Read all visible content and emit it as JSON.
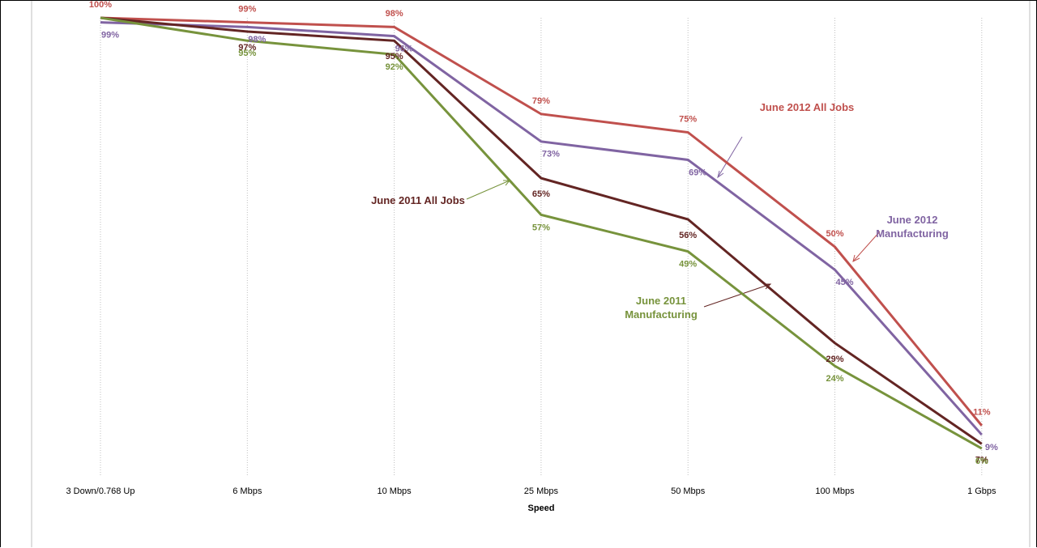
{
  "chart_data": {
    "type": "line",
    "x_label": "Speed",
    "categories": [
      "3 Down/0.768 Up",
      "6 Mbps",
      "10 Mbps",
      "25 Mbps",
      "50 Mbps",
      "100 Mbps",
      "1 Gbps"
    ],
    "ylim": [
      0,
      100
    ],
    "grid": true,
    "series": [
      {
        "name": "June 2012 All Jobs",
        "color": "#c0504d",
        "values": [
          100,
          99,
          98,
          79,
          75,
          50,
          11
        ],
        "value_labels": [
          "100%",
          "99%",
          "98%",
          "79%",
          "75%",
          "50%",
          "11%"
        ]
      },
      {
        "name": "June 2012 Manufacturing",
        "color": "#8064a2",
        "values": [
          99,
          98,
          96,
          73,
          69,
          45,
          9
        ],
        "value_labels": [
          "99%",
          "98%",
          "96%",
          "73%",
          "69%",
          "45%",
          "9%"
        ]
      },
      {
        "name": "June 2011 All Jobs",
        "color": "#632523",
        "values": [
          100,
          97,
          95,
          65,
          56,
          29,
          7
        ],
        "value_labels": [
          null,
          "97%",
          "95%",
          "65%",
          "56%",
          "29%",
          "7%"
        ]
      },
      {
        "name": "June 2011 Manufacturing",
        "color": "#77933c",
        "values": [
          100,
          95,
          92,
          57,
          49,
          24,
          6
        ],
        "value_labels": [
          null,
          "95%",
          "92%",
          "57%",
          "49%",
          "24%",
          "6%"
        ]
      }
    ]
  }
}
